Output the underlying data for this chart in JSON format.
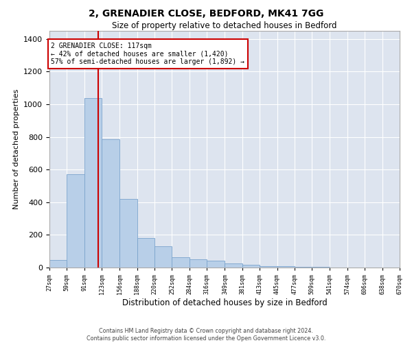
{
  "title": "2, GRENADIER CLOSE, BEDFORD, MK41 7GG",
  "subtitle": "Size of property relative to detached houses in Bedford",
  "xlabel": "Distribution of detached houses by size in Bedford",
  "ylabel": "Number of detached properties",
  "bar_color": "#b8cfe8",
  "bar_edge_color": "#7aa3cc",
  "background_color": "#dde4ef",
  "grid_color": "#ffffff",
  "annotation_box_color": "#cc0000",
  "red_line_color": "#cc0000",
  "property_line_x": 117,
  "annotation_text_line1": "2 GRENADIER CLOSE: 117sqm",
  "annotation_text_line2": "← 42% of detached houses are smaller (1,420)",
  "annotation_text_line3": "57% of semi-detached houses are larger (1,892) →",
  "bin_edges": [
    27,
    59,
    91,
    123,
    156,
    188,
    220,
    252,
    284,
    316,
    349,
    381,
    413,
    445,
    477,
    509,
    541,
    574,
    606,
    638,
    670
  ],
  "bar_heights": [
    45,
    570,
    1040,
    785,
    420,
    180,
    130,
    65,
    50,
    40,
    27,
    15,
    10,
    8,
    5,
    3,
    2,
    1,
    1,
    0
  ],
  "ylim": [
    0,
    1450
  ],
  "yticks": [
    0,
    200,
    400,
    600,
    800,
    1000,
    1200,
    1400
  ],
  "footnote1": "Contains HM Land Registry data © Crown copyright and database right 2024.",
  "footnote2": "Contains public sector information licensed under the Open Government Licence v3.0."
}
